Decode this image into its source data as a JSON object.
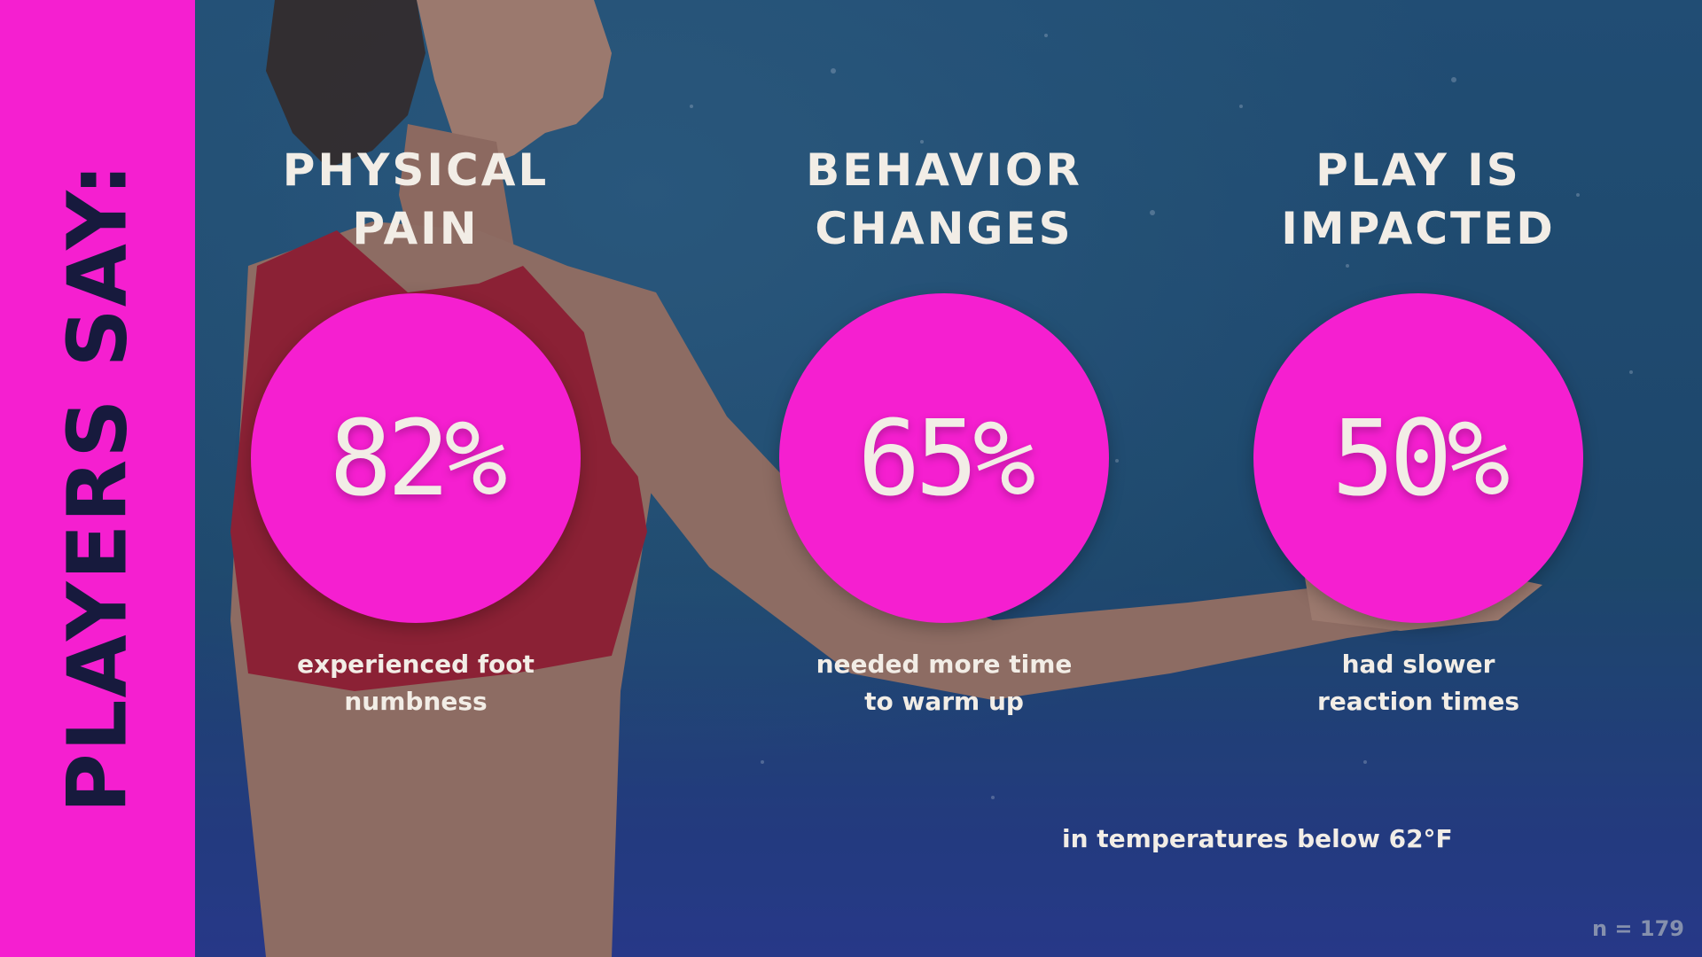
{
  "sidebar": {
    "title": "PLAYERS SAY:"
  },
  "stats": [
    {
      "heading": "PHYSICAL\nPAIN",
      "value": "82%",
      "caption": "experienced foot\nnumbness"
    },
    {
      "heading": "BEHAVIOR\nCHANGES",
      "value": "65%",
      "caption": "needed more time\nto warm up"
    },
    {
      "heading": "PLAY IS\nIMPACTED",
      "value": "50%",
      "caption": "had slower\nreaction times"
    }
  ],
  "footnote": "in temperatures below 62°F",
  "sample_size": "n = 179",
  "colors": {
    "accent": "#f51fd0",
    "text": "#f2ede6",
    "dark": "#171a3d",
    "background": "#1d4a6e"
  }
}
